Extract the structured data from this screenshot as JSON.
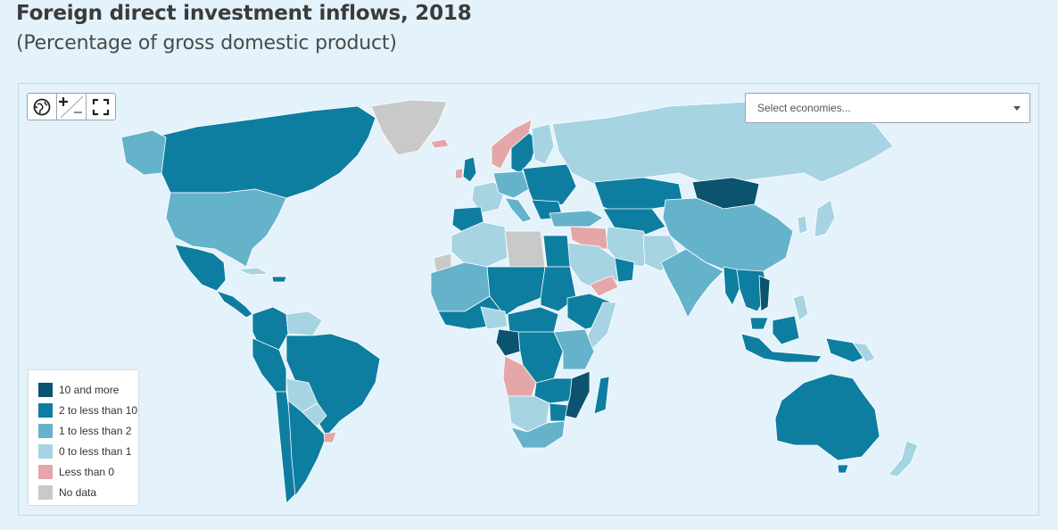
{
  "title": "Foreign direct investment inflows, 2018",
  "subtitle": "(Percentage of gross domestic product)",
  "toolbar": {
    "buttons": [
      {
        "name": "reset-view-button",
        "icon": "globe-reset-icon"
      },
      {
        "name": "zoom-toggle-button",
        "icon": "zoom-in-out-icon"
      },
      {
        "name": "fullscreen-button",
        "icon": "fullscreen-icon"
      }
    ]
  },
  "selector": {
    "placeholder": "Select economies..."
  },
  "legend": {
    "items": [
      {
        "label": "10 and more",
        "color": "#0b536f"
      },
      {
        "label": "2 to less than 10",
        "color": "#0e7ea0"
      },
      {
        "label": "1 to less than 2",
        "color": "#65b2cb"
      },
      {
        "label": "0 to less than 1",
        "color": "#a6d4e2"
      },
      {
        "label": "Less than 0",
        "color": "#e5a6aa"
      },
      {
        "label": "No data",
        "color": "#c9c9c9"
      }
    ]
  },
  "colors": {
    "ocean": "#e3f2fb",
    "border": "#ffffff"
  }
}
